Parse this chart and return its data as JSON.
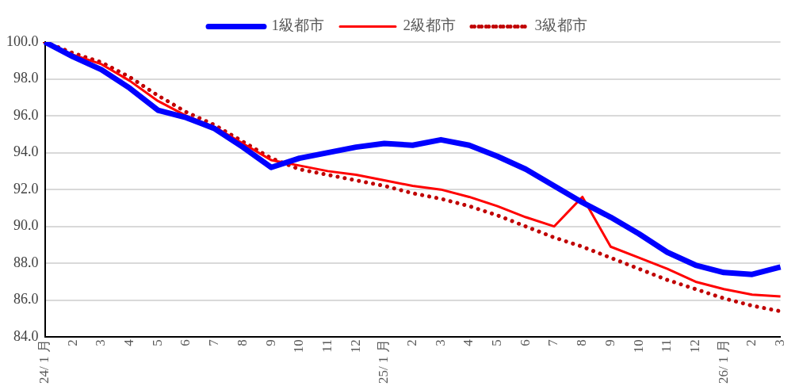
{
  "chart_data": {
    "type": "line",
    "categories": [
      "24/ 1 月",
      "2",
      "3",
      "4",
      "5",
      "6",
      "7",
      "8",
      "9",
      "10",
      "11",
      "12",
      "25/ 1 月",
      "2",
      "3",
      "4",
      "5",
      "6",
      "7",
      "8",
      "9",
      "10",
      "11",
      "12",
      "26/ 1 月",
      "2",
      "3"
    ],
    "series": [
      {
        "name": "1級都市",
        "color": "#0000ff",
        "line_style": "solid",
        "values": [
          100,
          99.2,
          98.5,
          97.5,
          96.3,
          95.9,
          95.3,
          94.3,
          93.2,
          93.7,
          94.0,
          94.3,
          94.5,
          94.4,
          94.7,
          94.4,
          93.8,
          93.1,
          92.2,
          91.3,
          90.5,
          89.6,
          88.6,
          87.9,
          87.5,
          87.4,
          87.8
        ]
      },
      {
        "name": "2級都市",
        "color": "#ff0000",
        "line_style": "solid",
        "values": [
          100,
          99.3,
          98.8,
          97.9,
          96.8,
          96.0,
          95.4,
          94.5,
          93.6,
          93.3,
          93.0,
          92.8,
          92.5,
          92.2,
          92.0,
          91.6,
          91.1,
          90.5,
          90.0,
          91.6,
          88.9,
          88.3,
          87.7,
          87.0,
          86.6,
          86.3,
          86.2
        ]
      },
      {
        "name": "3級都市",
        "color": "#c00000",
        "line_style": "dotted",
        "values": [
          100,
          99.4,
          98.9,
          98.1,
          97.1,
          96.2,
          95.5,
          94.6,
          93.7,
          93.1,
          92.8,
          92.5,
          92.2,
          91.8,
          91.5,
          91.1,
          90.6,
          90.0,
          89.4,
          88.9,
          88.3,
          87.7,
          87.1,
          86.6,
          86.1,
          85.7,
          85.4
        ]
      }
    ],
    "ylim": [
      84,
      100
    ],
    "yticks": [
      {
        "value": 84,
        "label": "84.0"
      },
      {
        "value": 86,
        "label": "86.0"
      },
      {
        "value": 88,
        "label": "88.0"
      },
      {
        "value": 90,
        "label": "90.0"
      },
      {
        "value": 92,
        "label": "92.0"
      },
      {
        "value": 94,
        "label": "94.0"
      },
      {
        "value": 96,
        "label": "96.0"
      },
      {
        "value": 98,
        "label": "98.0"
      },
      {
        "value": 100,
        "label": "100.0"
      }
    ],
    "grid": "y",
    "legend": "top",
    "marker": "none"
  }
}
